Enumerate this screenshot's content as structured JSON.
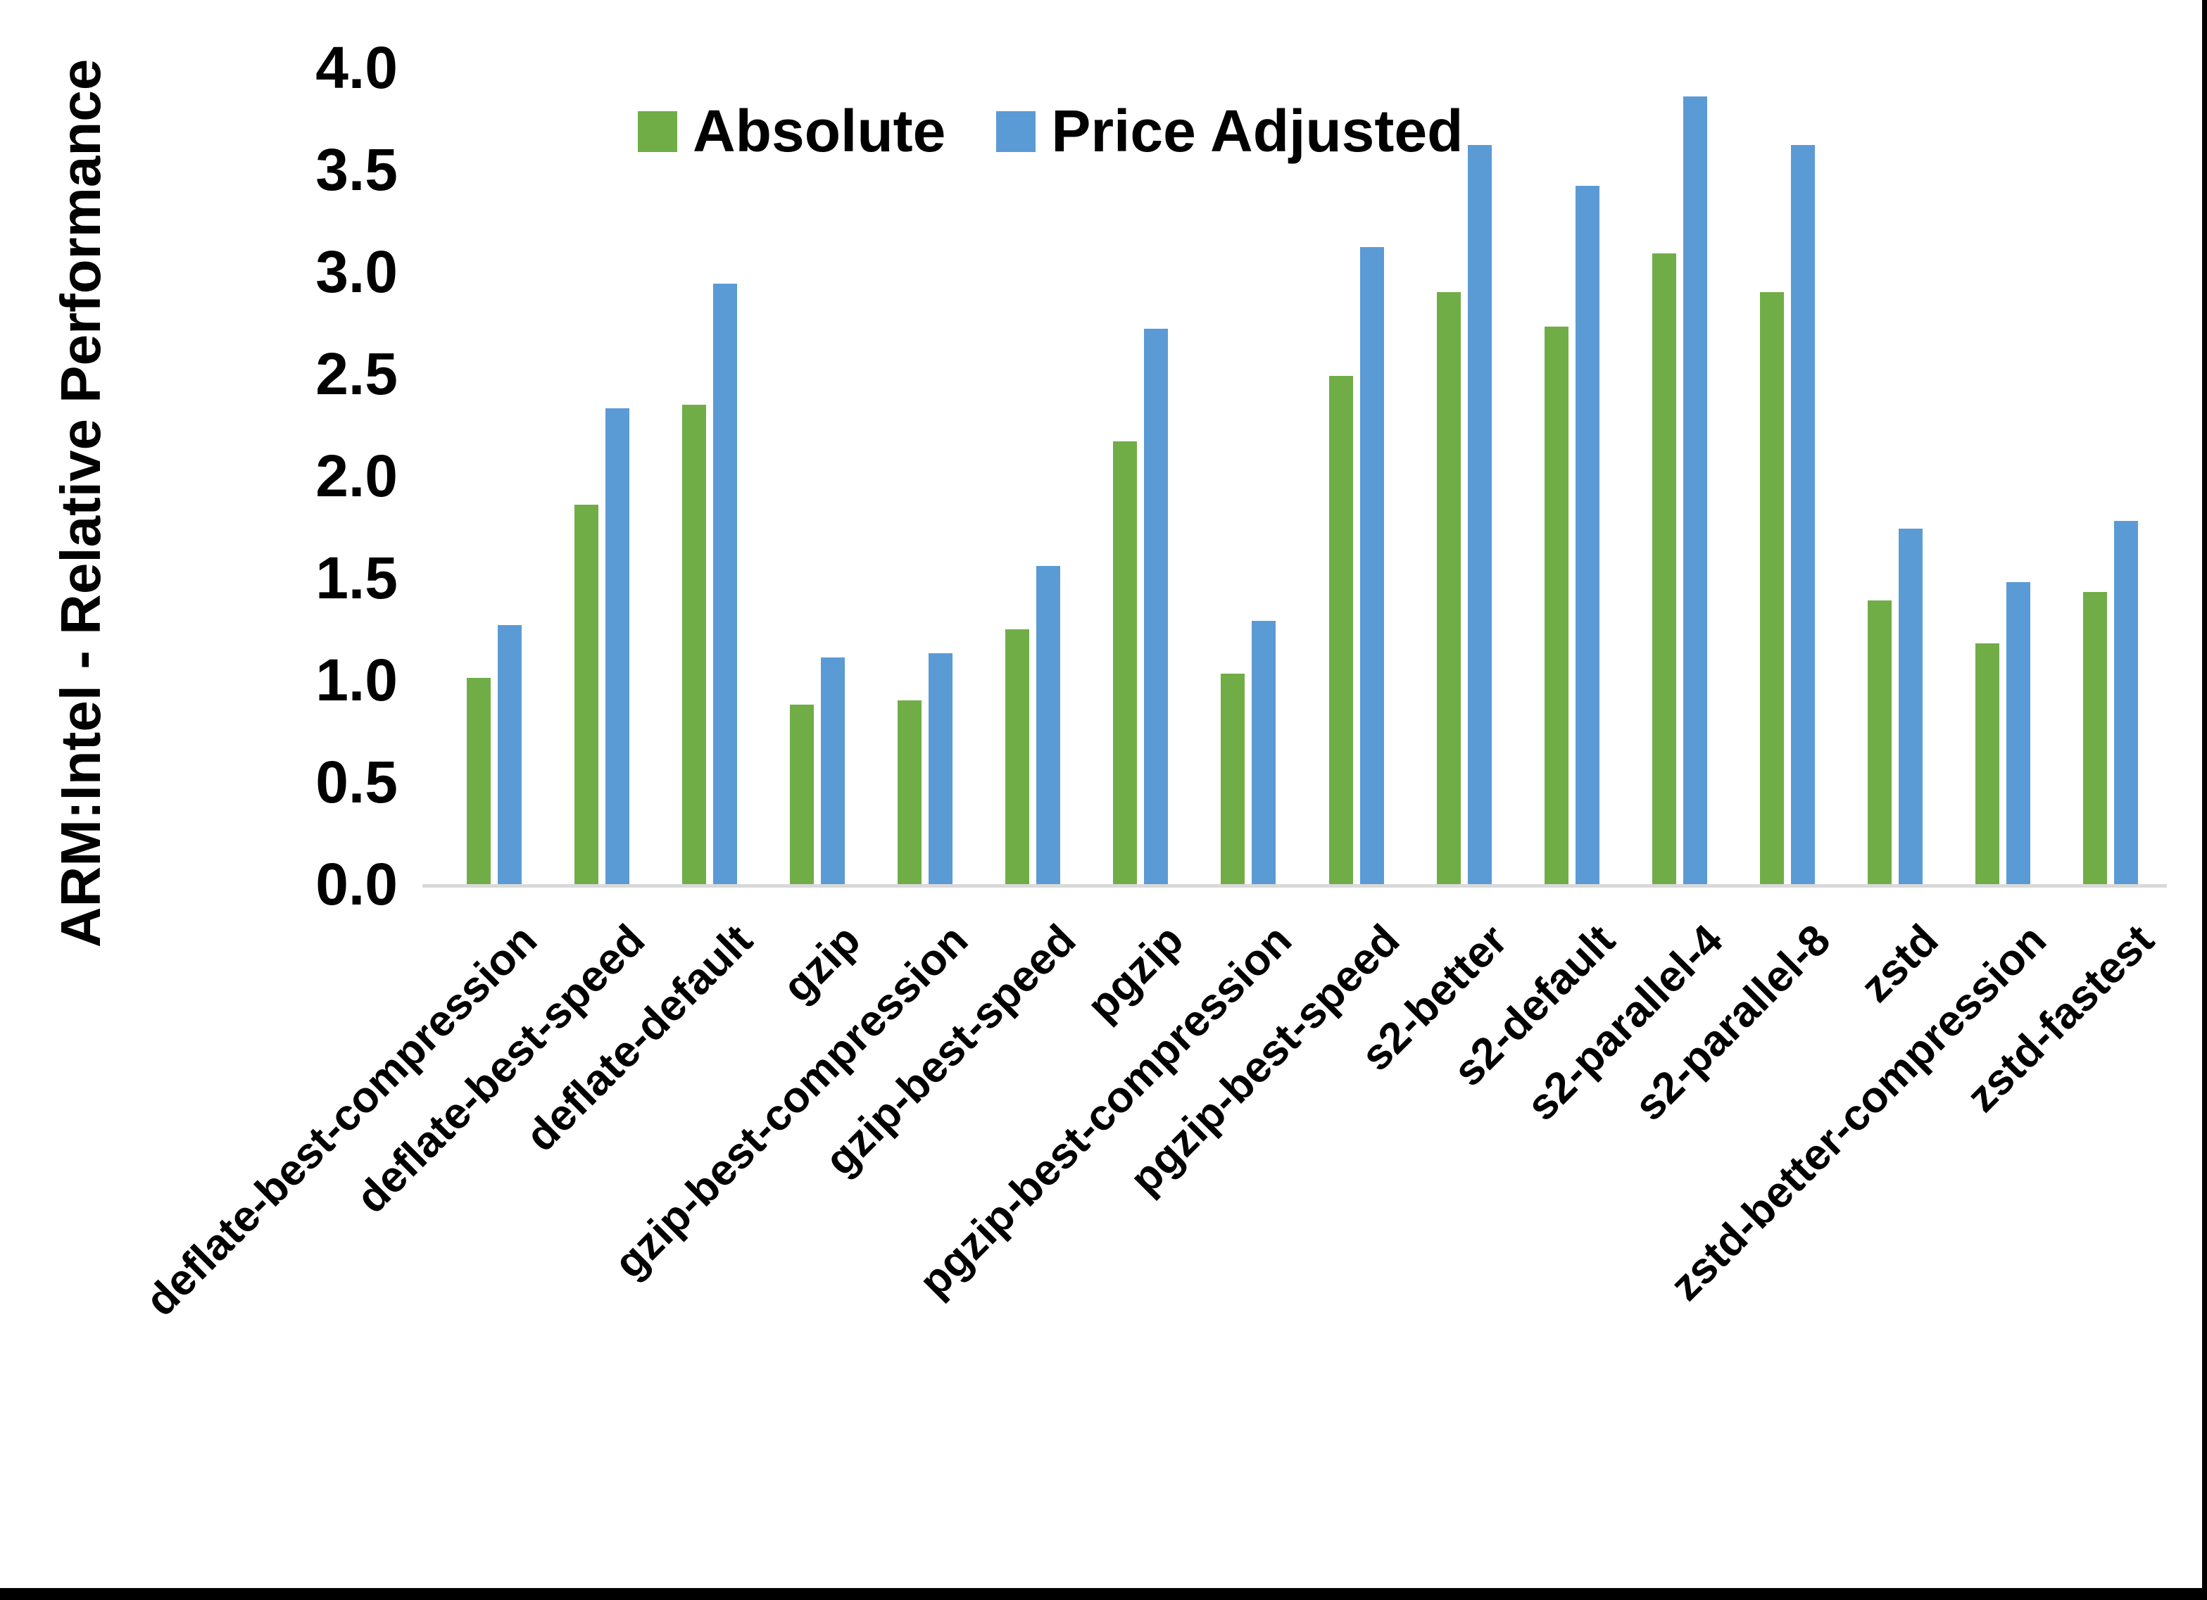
{
  "page": {
    "background": "#ffffff",
    "right_border_color": "#000000",
    "bottom_bar_color": "#000000"
  },
  "chart_data": {
    "type": "bar",
    "title": "",
    "xlabel": "",
    "ylabel": "ARM:Intel - Relative Performance",
    "ylim": [
      0,
      4.0
    ],
    "ytick_values": [
      4.0,
      3.5,
      3.0,
      2.5,
      2.0,
      1.5,
      1.0,
      0.5,
      0.0
    ],
    "ytick_labels": [
      "4.0",
      "3.5",
      "3.0",
      "2.5",
      "2.0",
      "1.5",
      "1.0",
      "0.5",
      "0.0"
    ],
    "grid": false,
    "legend_position": "top-center",
    "categories": [
      "deflate-best-compression",
      "deflate-best-speed",
      "deflate-default",
      "gzip",
      "gzip-best-compression",
      "gzip-best-speed",
      "pgzip",
      "pgzip-best-compression",
      "pgzip-best-speed",
      "s2-better",
      "s2-default",
      "s2-parallel-4",
      "s2-parallel-8",
      "zstd",
      "zstd-better-compression",
      "zstd-fastest"
    ],
    "series": [
      {
        "name": "Absolute",
        "color": "#70AD47",
        "values": [
          1.01,
          1.86,
          2.35,
          0.88,
          0.9,
          1.25,
          2.17,
          1.03,
          2.49,
          2.9,
          2.73,
          3.09,
          2.9,
          1.39,
          1.18,
          1.43
        ]
      },
      {
        "name": "Price Adjusted",
        "color": "#5B9BD5",
        "values": [
          1.27,
          2.33,
          2.94,
          1.11,
          1.13,
          1.56,
          2.72,
          1.29,
          3.12,
          3.62,
          3.42,
          3.86,
          3.62,
          1.74,
          1.48,
          1.78
        ]
      }
    ]
  }
}
